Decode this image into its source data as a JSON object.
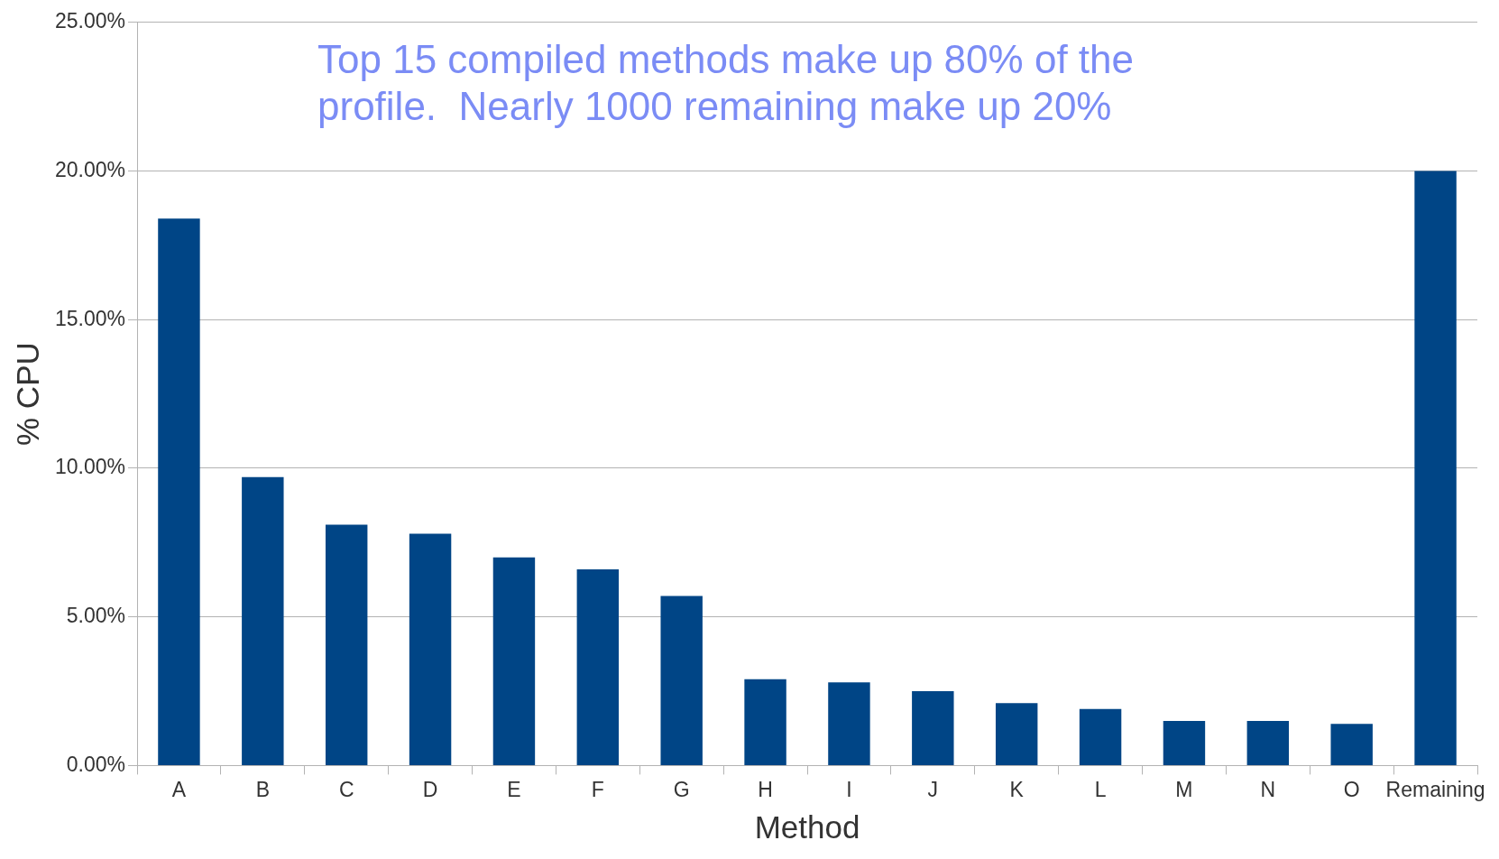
{
  "chart_data": {
    "type": "bar",
    "xlabel": "Method",
    "ylabel": "% CPU",
    "categories": [
      "A",
      "B",
      "C",
      "D",
      "E",
      "F",
      "G",
      "H",
      "I",
      "J",
      "K",
      "L",
      "M",
      "N",
      "O",
      "Remaining"
    ],
    "values": [
      18.4,
      9.7,
      8.1,
      7.8,
      7.0,
      6.6,
      5.7,
      2.9,
      2.8,
      2.5,
      2.1,
      1.9,
      1.5,
      1.5,
      1.4,
      20.0
    ],
    "color": "#004586",
    "ylim": [
      0,
      25
    ],
    "yticks": [
      {
        "value": 0,
        "label": "0.00%"
      },
      {
        "value": 5,
        "label": "5.00%"
      },
      {
        "value": 10,
        "label": "10.00%"
      },
      {
        "value": 15,
        "label": "15.00%"
      },
      {
        "value": 20,
        "label": "20.00%"
      },
      {
        "value": 25,
        "label": "25.00%"
      }
    ],
    "grid": "y",
    "legend": false,
    "annotations": [
      "Top 15 compiled methods make up 80% of the profile.  Nearly 1000 remaining make up 20%"
    ]
  }
}
